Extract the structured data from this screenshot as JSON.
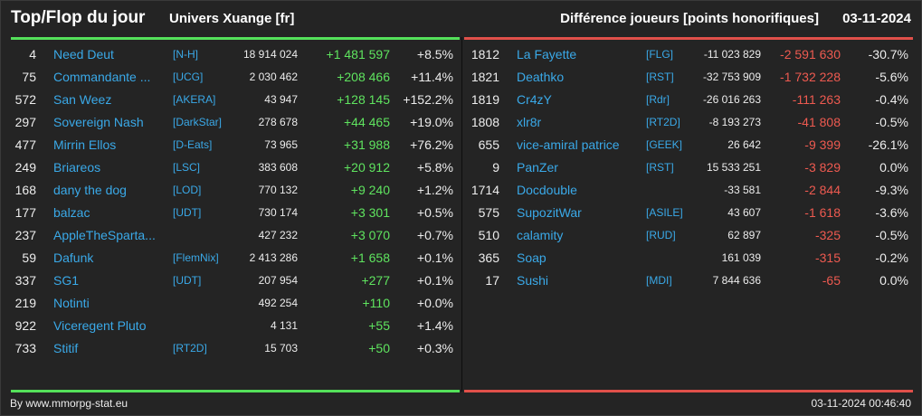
{
  "header": {
    "title": "Top/Flop du jour",
    "universe": "Univers Xuange [fr]",
    "metric": "Différence joueurs [points honorifiques]",
    "date": "03-11-2024"
  },
  "colors": {
    "background": "#242424",
    "positive": "#5fe45f",
    "negative": "#ee5a50",
    "link": "#3aa9e8",
    "top_bar": "#54e05a",
    "flop_bar": "#e0504a"
  },
  "top": [
    {
      "rank": "4",
      "name": "Need Deut",
      "tag": "[N-H]",
      "total": "18 914 024",
      "diff": "+1 481 597",
      "pct": "+8.5%"
    },
    {
      "rank": "75",
      "name": "Commandante ...",
      "tag": "[UCG]",
      "total": "2 030 462",
      "diff": "+208 466",
      "pct": "+11.4%"
    },
    {
      "rank": "572",
      "name": "San Weez",
      "tag": "[AKERA]",
      "total": "43 947",
      "diff": "+128 145",
      "pct": "+152.2%"
    },
    {
      "rank": "297",
      "name": "Sovereign Nash",
      "tag": "[DarkStar]",
      "total": "278 678",
      "diff": "+44 465",
      "pct": "+19.0%"
    },
    {
      "rank": "477",
      "name": "Mirrin Ellos",
      "tag": "[D-Eats]",
      "total": "73 965",
      "diff": "+31 988",
      "pct": "+76.2%"
    },
    {
      "rank": "249",
      "name": "Briareos",
      "tag": "[LSC]",
      "total": "383 608",
      "diff": "+20 912",
      "pct": "+5.8%"
    },
    {
      "rank": "168",
      "name": "dany the dog",
      "tag": "[LOD]",
      "total": "770 132",
      "diff": "+9 240",
      "pct": "+1.2%"
    },
    {
      "rank": "177",
      "name": "balzac",
      "tag": "[UDT]",
      "total": "730 174",
      "diff": "+3 301",
      "pct": "+0.5%"
    },
    {
      "rank": "237",
      "name": "AppleTheSparta...",
      "tag": "",
      "total": "427 232",
      "diff": "+3 070",
      "pct": "+0.7%"
    },
    {
      "rank": "59",
      "name": "Dafunk",
      "tag": "[FlemNix]",
      "total": "2 413 286",
      "diff": "+1 658",
      "pct": "+0.1%"
    },
    {
      "rank": "337",
      "name": "SG1",
      "tag": "[UDT]",
      "total": "207 954",
      "diff": "+277",
      "pct": "+0.1%"
    },
    {
      "rank": "219",
      "name": "Notinti",
      "tag": "",
      "total": "492 254",
      "diff": "+110",
      "pct": "+0.0%"
    },
    {
      "rank": "922",
      "name": "Viceregent Pluto",
      "tag": "",
      "total": "4 131",
      "diff": "+55",
      "pct": "+1.4%"
    },
    {
      "rank": "733",
      "name": "Stitif",
      "tag": "[RT2D]",
      "total": "15 703",
      "diff": "+50",
      "pct": "+0.3%"
    }
  ],
  "flop": [
    {
      "rank": "1812",
      "name": "La Fayette",
      "tag": "[FLG]",
      "total": "-11 023 829",
      "diff": "-2 591 630",
      "pct": "-30.7%"
    },
    {
      "rank": "1821",
      "name": "Deathko",
      "tag": "[RST]",
      "total": "-32 753 909",
      "diff": "-1 732 228",
      "pct": "-5.6%"
    },
    {
      "rank": "1819",
      "name": "Cr4zY",
      "tag": "[Rdr]",
      "total": "-26 016 263",
      "diff": "-111 263",
      "pct": "-0.4%"
    },
    {
      "rank": "1808",
      "name": "xlr8r",
      "tag": "[RT2D]",
      "total": "-8 193 273",
      "diff": "-41 808",
      "pct": "-0.5%"
    },
    {
      "rank": "655",
      "name": "vice-amiral patrice",
      "tag": "[GEEK]",
      "total": "26 642",
      "diff": "-9 399",
      "pct": "-26.1%"
    },
    {
      "rank": "9",
      "name": "PanZer",
      "tag": "[RST]",
      "total": "15 533 251",
      "diff": "-3 829",
      "pct": "0.0%"
    },
    {
      "rank": "1714",
      "name": "Docdouble",
      "tag": "",
      "total": "-33 581",
      "diff": "-2 844",
      "pct": "-9.3%"
    },
    {
      "rank": "575",
      "name": "SupozitWar",
      "tag": "[ASILE]",
      "total": "43 607",
      "diff": "-1 618",
      "pct": "-3.6%"
    },
    {
      "rank": "510",
      "name": "calamity",
      "tag": "[RUD]",
      "total": "62 897",
      "diff": "-325",
      "pct": "-0.5%"
    },
    {
      "rank": "365",
      "name": "Soap",
      "tag": "",
      "total": "161 039",
      "diff": "-315",
      "pct": "-0.2%"
    },
    {
      "rank": "17",
      "name": "Sushi",
      "tag": "[MDI]",
      "total": "7 844 636",
      "diff": "-65",
      "pct": "0.0%"
    }
  ],
  "footer": {
    "credit": "By www.mmorpg-stat.eu",
    "timestamp": "03-11-2024 00:46:40"
  }
}
